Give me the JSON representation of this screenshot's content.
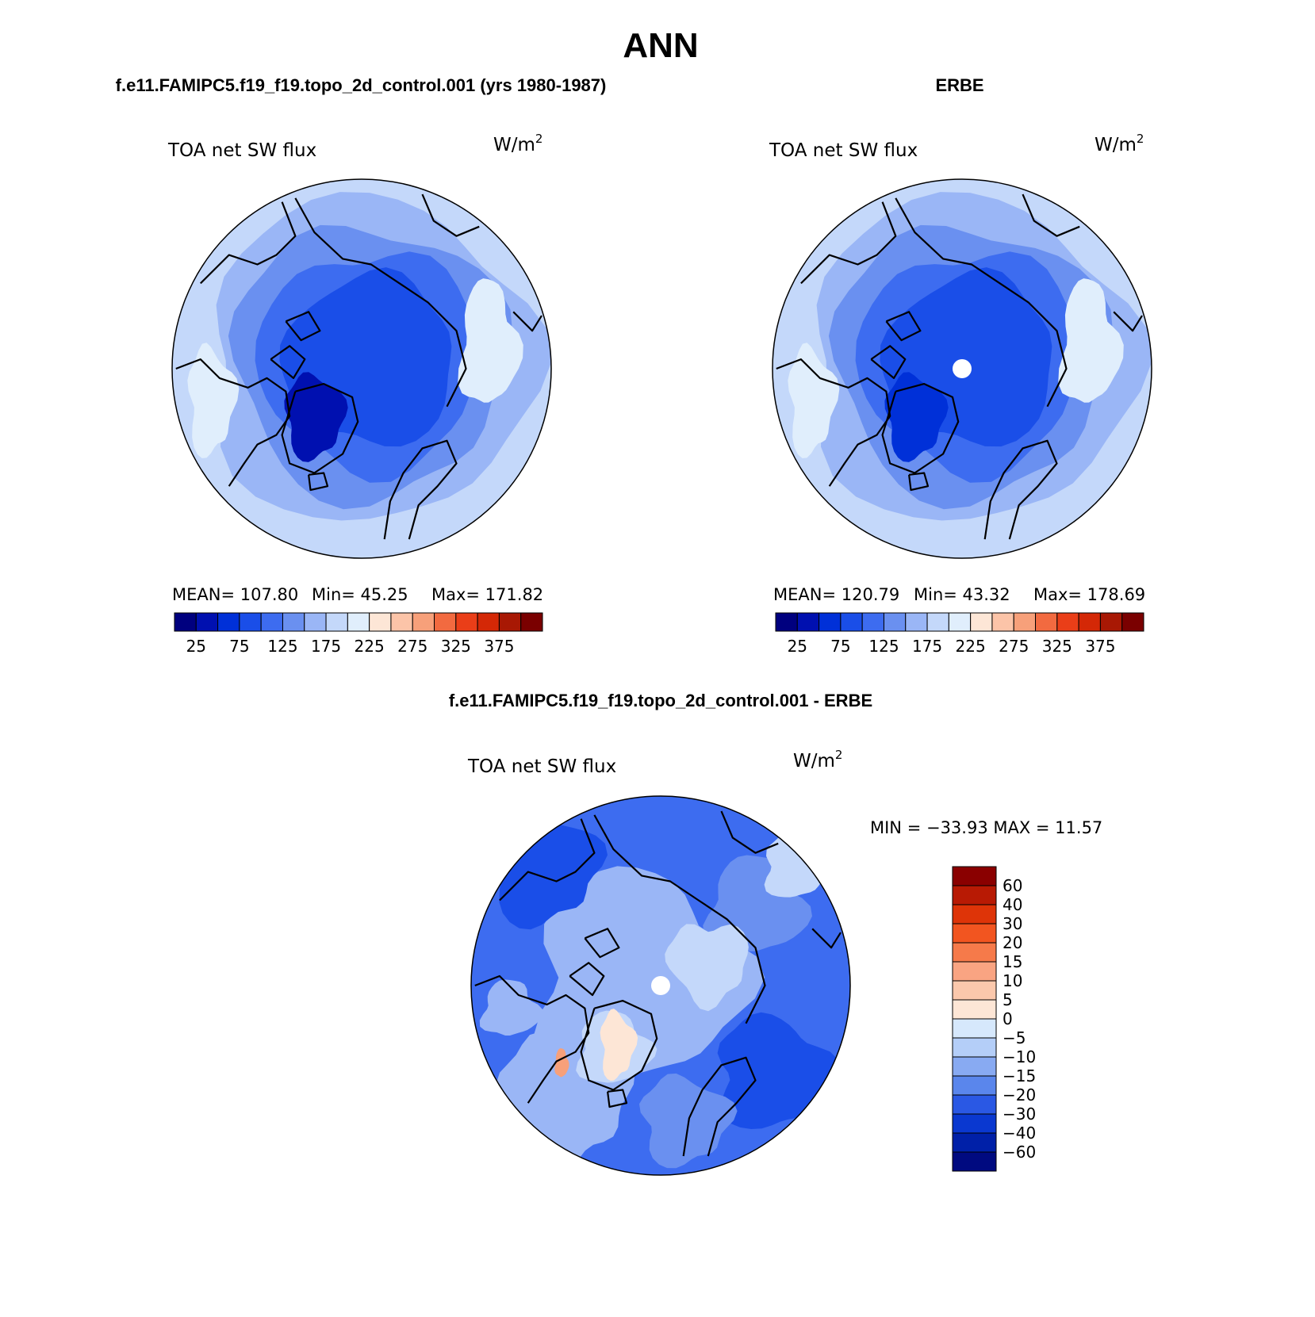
{
  "figure": {
    "title": "ANN",
    "colors": {
      "background": "#ffffff",
      "line": "#000000",
      "missing_data": "#ffffff"
    }
  },
  "panels": [
    {
      "id": "model",
      "header": "f.e11.FAMIPC5.f19_f19.topo_2d_control.001 (yrs 1980-1987)",
      "variable": "TOA net SW flux",
      "units_base": "W/m",
      "units_exp": "2",
      "stats": {
        "mean": "MEAN= 107.80",
        "min": "Min=   45.25",
        "max": "Max= 171.82"
      },
      "has_pole_hole": false,
      "field_levels": [
        3,
        4,
        5,
        6,
        7,
        8,
        9
      ],
      "greenland_min_level": 1
    },
    {
      "id": "obs",
      "header": "ERBE",
      "variable": "TOA net SW flux",
      "units_base": "W/m",
      "units_exp": "2",
      "stats": {
        "mean": "MEAN= 120.79",
        "min": "Min=   43.32",
        "max": "Max= 178.69"
      },
      "has_pole_hole": true,
      "field_levels": [
        3,
        4,
        5,
        6,
        7,
        8,
        9
      ],
      "greenland_min_level": 2
    }
  ],
  "shared_colorbar": {
    "orientation": "horizontal",
    "colors": [
      "#00007f",
      "#0010b0",
      "#0030d8",
      "#1a4ee8",
      "#3d6cf0",
      "#6a90f0",
      "#9ab6f6",
      "#c4d8fa",
      "#e0eefc",
      "#fde6d6",
      "#fcc4a8",
      "#f7a07a",
      "#f26a40",
      "#ea3e18",
      "#d42806",
      "#a81804",
      "#7a0000"
    ],
    "tick_labels": [
      "25",
      "75",
      "125",
      "175",
      "225",
      "275",
      "325",
      "375"
    ]
  },
  "difference": {
    "header": "f.e11.FAMIPC5.f19_f19.topo_2d_control.001 - ERBE",
    "variable": "TOA net SW flux",
    "units_base": "W/m",
    "units_exp": "2",
    "minmax": "MIN = −33.93 MAX =   11.57",
    "colorbar": {
      "orientation": "vertical",
      "colors_top_to_bottom": [
        "#8a0000",
        "#b81a04",
        "#de3408",
        "#f25520",
        "#f67a4a",
        "#f9a482",
        "#fbc8ac",
        "#fde6d6",
        "#d6e8fc",
        "#b4cef8",
        "#88aaf2",
        "#5a86ec",
        "#2a58e4",
        "#0a38d0",
        "#0020a8",
        "#000a80"
      ],
      "tick_labels": [
        "60",
        "40",
        "30",
        "20",
        "15",
        "10",
        "5",
        "0",
        "−5",
        "−10",
        "−15",
        "−20",
        "−30",
        "−40",
        "−60"
      ]
    },
    "field_colors": [
      "#3d6cf0",
      "#1a4ee8",
      "#6a90f0",
      "#9ab6f6",
      "#c4d8fa",
      "#fde6d6",
      "#f7a07a"
    ]
  }
}
